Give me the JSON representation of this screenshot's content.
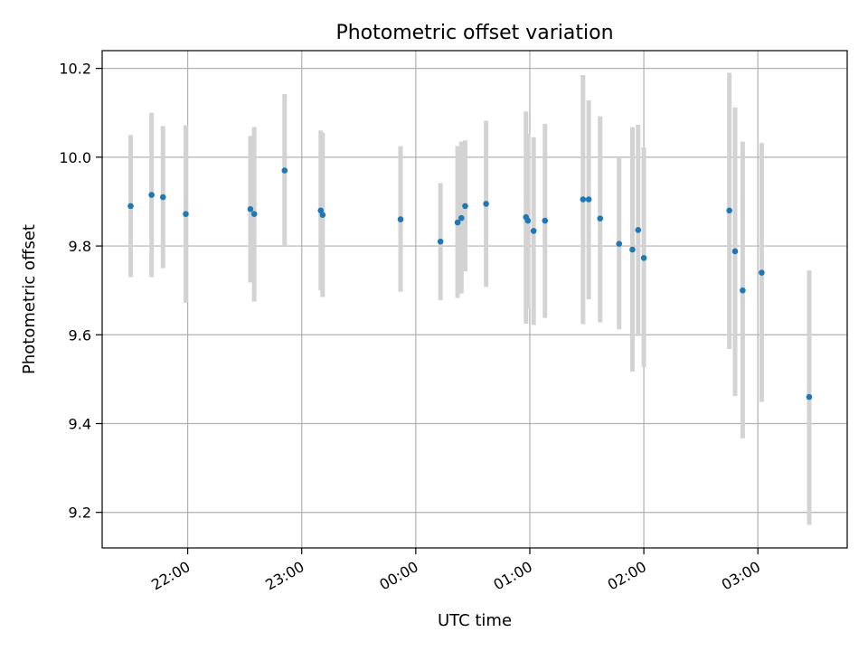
{
  "chart_data": {
    "type": "scatter",
    "title": "Photometric offset variation",
    "xlabel": "UTC time",
    "ylabel": "Photometric offset",
    "x_axis_type": "time",
    "xlim": [
      "21:15",
      "03:47"
    ],
    "ylim": [
      9.12,
      10.24
    ],
    "yticks": [
      9.2,
      9.4,
      9.6,
      9.8,
      10.0,
      10.2
    ],
    "ytick_labels": [
      "9.2",
      "9.4",
      "9.6",
      "9.8",
      "10.0",
      "10.2"
    ],
    "xticks": [
      "22:00",
      "23:00",
      "00:00",
      "01:00",
      "02:00",
      "03:00"
    ],
    "xtick_labels": [
      "22:00",
      "23:00",
      "00:00",
      "01:00",
      "02:00",
      "03:00"
    ],
    "grid": true,
    "colors": {
      "point": "#1f77b4",
      "errorbar": "#d3d3d3",
      "grid": "#b0b0b0"
    },
    "points": [
      {
        "x": "21:30",
        "y": 9.89,
        "ylow": 9.73,
        "yhigh": 10.05
      },
      {
        "x": "21:41",
        "y": 9.915,
        "ylow": 9.73,
        "yhigh": 10.1
      },
      {
        "x": "21:47",
        "y": 9.91,
        "ylow": 9.75,
        "yhigh": 10.07
      },
      {
        "x": "21:59",
        "y": 9.872,
        "ylow": 9.672,
        "yhigh": 10.072
      },
      {
        "x": "22:33",
        "y": 9.883,
        "ylow": 9.718,
        "yhigh": 10.048
      },
      {
        "x": "22:35",
        "y": 9.872,
        "ylow": 9.675,
        "yhigh": 10.068
      },
      {
        "x": "22:51",
        "y": 9.97,
        "ylow": 9.8,
        "yhigh": 10.142
      },
      {
        "x": "23:10",
        "y": 9.88,
        "ylow": 9.7,
        "yhigh": 10.06
      },
      {
        "x": "23:11",
        "y": 9.87,
        "ylow": 9.685,
        "yhigh": 10.055
      },
      {
        "x": "23:52",
        "y": 9.86,
        "ylow": 9.697,
        "yhigh": 10.025
      },
      {
        "x": "00:13",
        "y": 9.81,
        "ylow": 9.678,
        "yhigh": 9.942
      },
      {
        "x": "00:22",
        "y": 9.853,
        "ylow": 9.683,
        "yhigh": 10.025
      },
      {
        "x": "00:24",
        "y": 9.863,
        "ylow": 9.693,
        "yhigh": 10.035
      },
      {
        "x": "00:26",
        "y": 9.89,
        "ylow": 9.743,
        "yhigh": 10.038
      },
      {
        "x": "00:37",
        "y": 9.895,
        "ylow": 9.708,
        "yhigh": 10.082
      },
      {
        "x": "00:58",
        "y": 9.865,
        "ylow": 9.625,
        "yhigh": 10.103
      },
      {
        "x": "00:59",
        "y": 9.857,
        "ylow": 9.66,
        "yhigh": 10.053
      },
      {
        "x": "01:02",
        "y": 9.834,
        "ylow": 9.622,
        "yhigh": 10.045
      },
      {
        "x": "01:08",
        "y": 9.857,
        "ylow": 9.638,
        "yhigh": 10.075
      },
      {
        "x": "01:28",
        "y": 9.905,
        "ylow": 9.624,
        "yhigh": 10.185
      },
      {
        "x": "01:31",
        "y": 9.905,
        "ylow": 9.68,
        "yhigh": 10.128
      },
      {
        "x": "01:37",
        "y": 9.862,
        "ylow": 9.628,
        "yhigh": 10.092
      },
      {
        "x": "01:47",
        "y": 9.805,
        "ylow": 9.612,
        "yhigh": 10.0
      },
      {
        "x": "01:54",
        "y": 9.792,
        "ylow": 9.517,
        "yhigh": 10.068
      },
      {
        "x": "01:57",
        "y": 9.836,
        "ylow": 9.597,
        "yhigh": 10.073
      },
      {
        "x": "02:00",
        "y": 9.773,
        "ylow": 9.527,
        "yhigh": 10.022
      },
      {
        "x": "02:45",
        "y": 9.88,
        "ylow": 9.568,
        "yhigh": 10.19
      },
      {
        "x": "02:48",
        "y": 9.788,
        "ylow": 9.462,
        "yhigh": 10.112
      },
      {
        "x": "02:52",
        "y": 9.7,
        "ylow": 9.367,
        "yhigh": 10.035
      },
      {
        "x": "03:02",
        "y": 9.74,
        "ylow": 9.449,
        "yhigh": 10.032
      },
      {
        "x": "03:27",
        "y": 9.46,
        "ylow": 9.172,
        "yhigh": 9.745
      }
    ]
  }
}
